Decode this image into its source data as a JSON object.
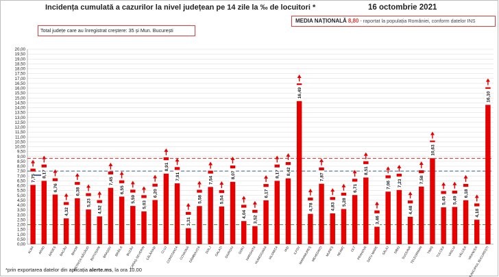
{
  "header": {
    "title": "Incidența cumulată a cazurilor la nivel județean pe 14 zile la ‰ de locuitori *",
    "date": "16 octombrie 2021"
  },
  "summary_box": {
    "text": "Total județe care au înregistrat creștere:  35 și Mun. București"
  },
  "national": {
    "label": "MEDIA NAȚIONALĂ",
    "value": "8,80",
    "note": " -  raportat la populația României, conform datelor INS"
  },
  "footnote": {
    "prefix": "*prin exportarea datelor din aplicația ",
    "source": "alerte.ms",
    "suffix": ", la ora 10.00"
  },
  "colors": {
    "bar": "#e60000",
    "arrow": "#e60000",
    "national_line": "#e53935",
    "blue_line": "#2e5d8a",
    "green_line": "#3a9a3a",
    "marker": "#1f3f9f"
  },
  "chart_data": {
    "type": "bar",
    "ylim": [
      0,
      20
    ],
    "grid": true,
    "y_ticks": [
      "0,00",
      "0,50",
      "1,00",
      "1,50",
      "2,00",
      "2,50",
      "3,00",
      "3,50",
      "4,00",
      "4,50",
      "5,00",
      "5,50",
      "6,00",
      "6,50",
      "7,00",
      "7,50",
      "8,00",
      "8,50",
      "9,00",
      "9,50",
      "10,00",
      "10,50",
      "11,00",
      "11,50",
      "12,00",
      "12,50",
      "13,00",
      "13,50",
      "14,00",
      "14,50",
      "15,00",
      "15,50",
      "16,00",
      "16,50",
      "17,00",
      "17,50",
      "18,00",
      "18,50",
      "19,00",
      "19,50",
      "20,00"
    ],
    "categories": [
      "ALBA",
      "ARAD",
      "ARGEȘ",
      "BACĂU",
      "BIHOR",
      "BISTRIȚA-NĂSĂUD",
      "BOTOȘANI",
      "BRAȘOV",
      "BRĂILA",
      "BUZĂU",
      "CARAȘ-SEVERIN",
      "CĂLĂRAȘI",
      "CLUJ",
      "CONSTANȚA",
      "COVASNA",
      "DÂMBOVIȚA",
      "DOLJ",
      "GALAȚI",
      "GIURGIU",
      "GORJ",
      "HARGHITA",
      "HUNEDOARA",
      "IALOMIȚA",
      "IAȘI",
      "ILFOV",
      "MARAMUREȘ",
      "MEHEDINȚI",
      "MUREȘ",
      "NEAMȚ",
      "OLT",
      "PRAHOVA",
      "SATU MARE",
      "SĂLAJ",
      "SIBIU",
      "SUCEAVA",
      "TELEORMAN",
      "TIMIȘ",
      "TULCEA",
      "VASLUI",
      "VÂLCEA",
      "VRANCEA",
      "MUNICIPIUL BUCUREȘTI"
    ],
    "values": [
      7.75,
      8.17,
      6.76,
      4.32,
      6.38,
      5.23,
      4.52,
      7.45,
      6.55,
      5.59,
      5.03,
      6.2,
      8.91,
      7.91,
      3.31,
      5.58,
      7.54,
      5.54,
      8.07,
      4.04,
      3.52,
      6.17,
      8.17,
      8.42,
      16.49,
      4.78,
      7.87,
      4.83,
      5.28,
      6.71,
      8.51,
      3.46,
      7.06,
      7.23,
      4.48,
      7.58,
      10.63,
      5.45,
      5.49,
      6.18,
      4.18,
      16.1
    ],
    "labels": [
      "7,75",
      "8,17",
      "6,76",
      "4,32",
      "6,38",
      "5,23",
      "4,52",
      "7,45",
      "6,55",
      "5,59",
      "5,03",
      "6,20",
      "8,91",
      "7,91",
      "3,31",
      "5,58",
      "7,54",
      "5,54",
      "8,07",
      "4,04",
      "3,52",
      "6,17",
      "8,17",
      "8,42",
      "16,49",
      "4,78",
      "7,87",
      "4,83",
      "5,28",
      "6,71",
      "8,51",
      "3,46",
      "7,06",
      "7,23",
      "4,48",
      "7,58",
      "10,63",
      "5,45",
      "5,49",
      "6,18",
      "4,18",
      "16,10"
    ],
    "reference_lines": [
      {
        "name": "national",
        "value": 8.8,
        "style": "dashed"
      },
      {
        "name": "blue",
        "value": 7.5,
        "style": "dashed"
      },
      {
        "name": "green",
        "value": 2.0,
        "style": "dashed"
      }
    ],
    "legend": "none"
  }
}
